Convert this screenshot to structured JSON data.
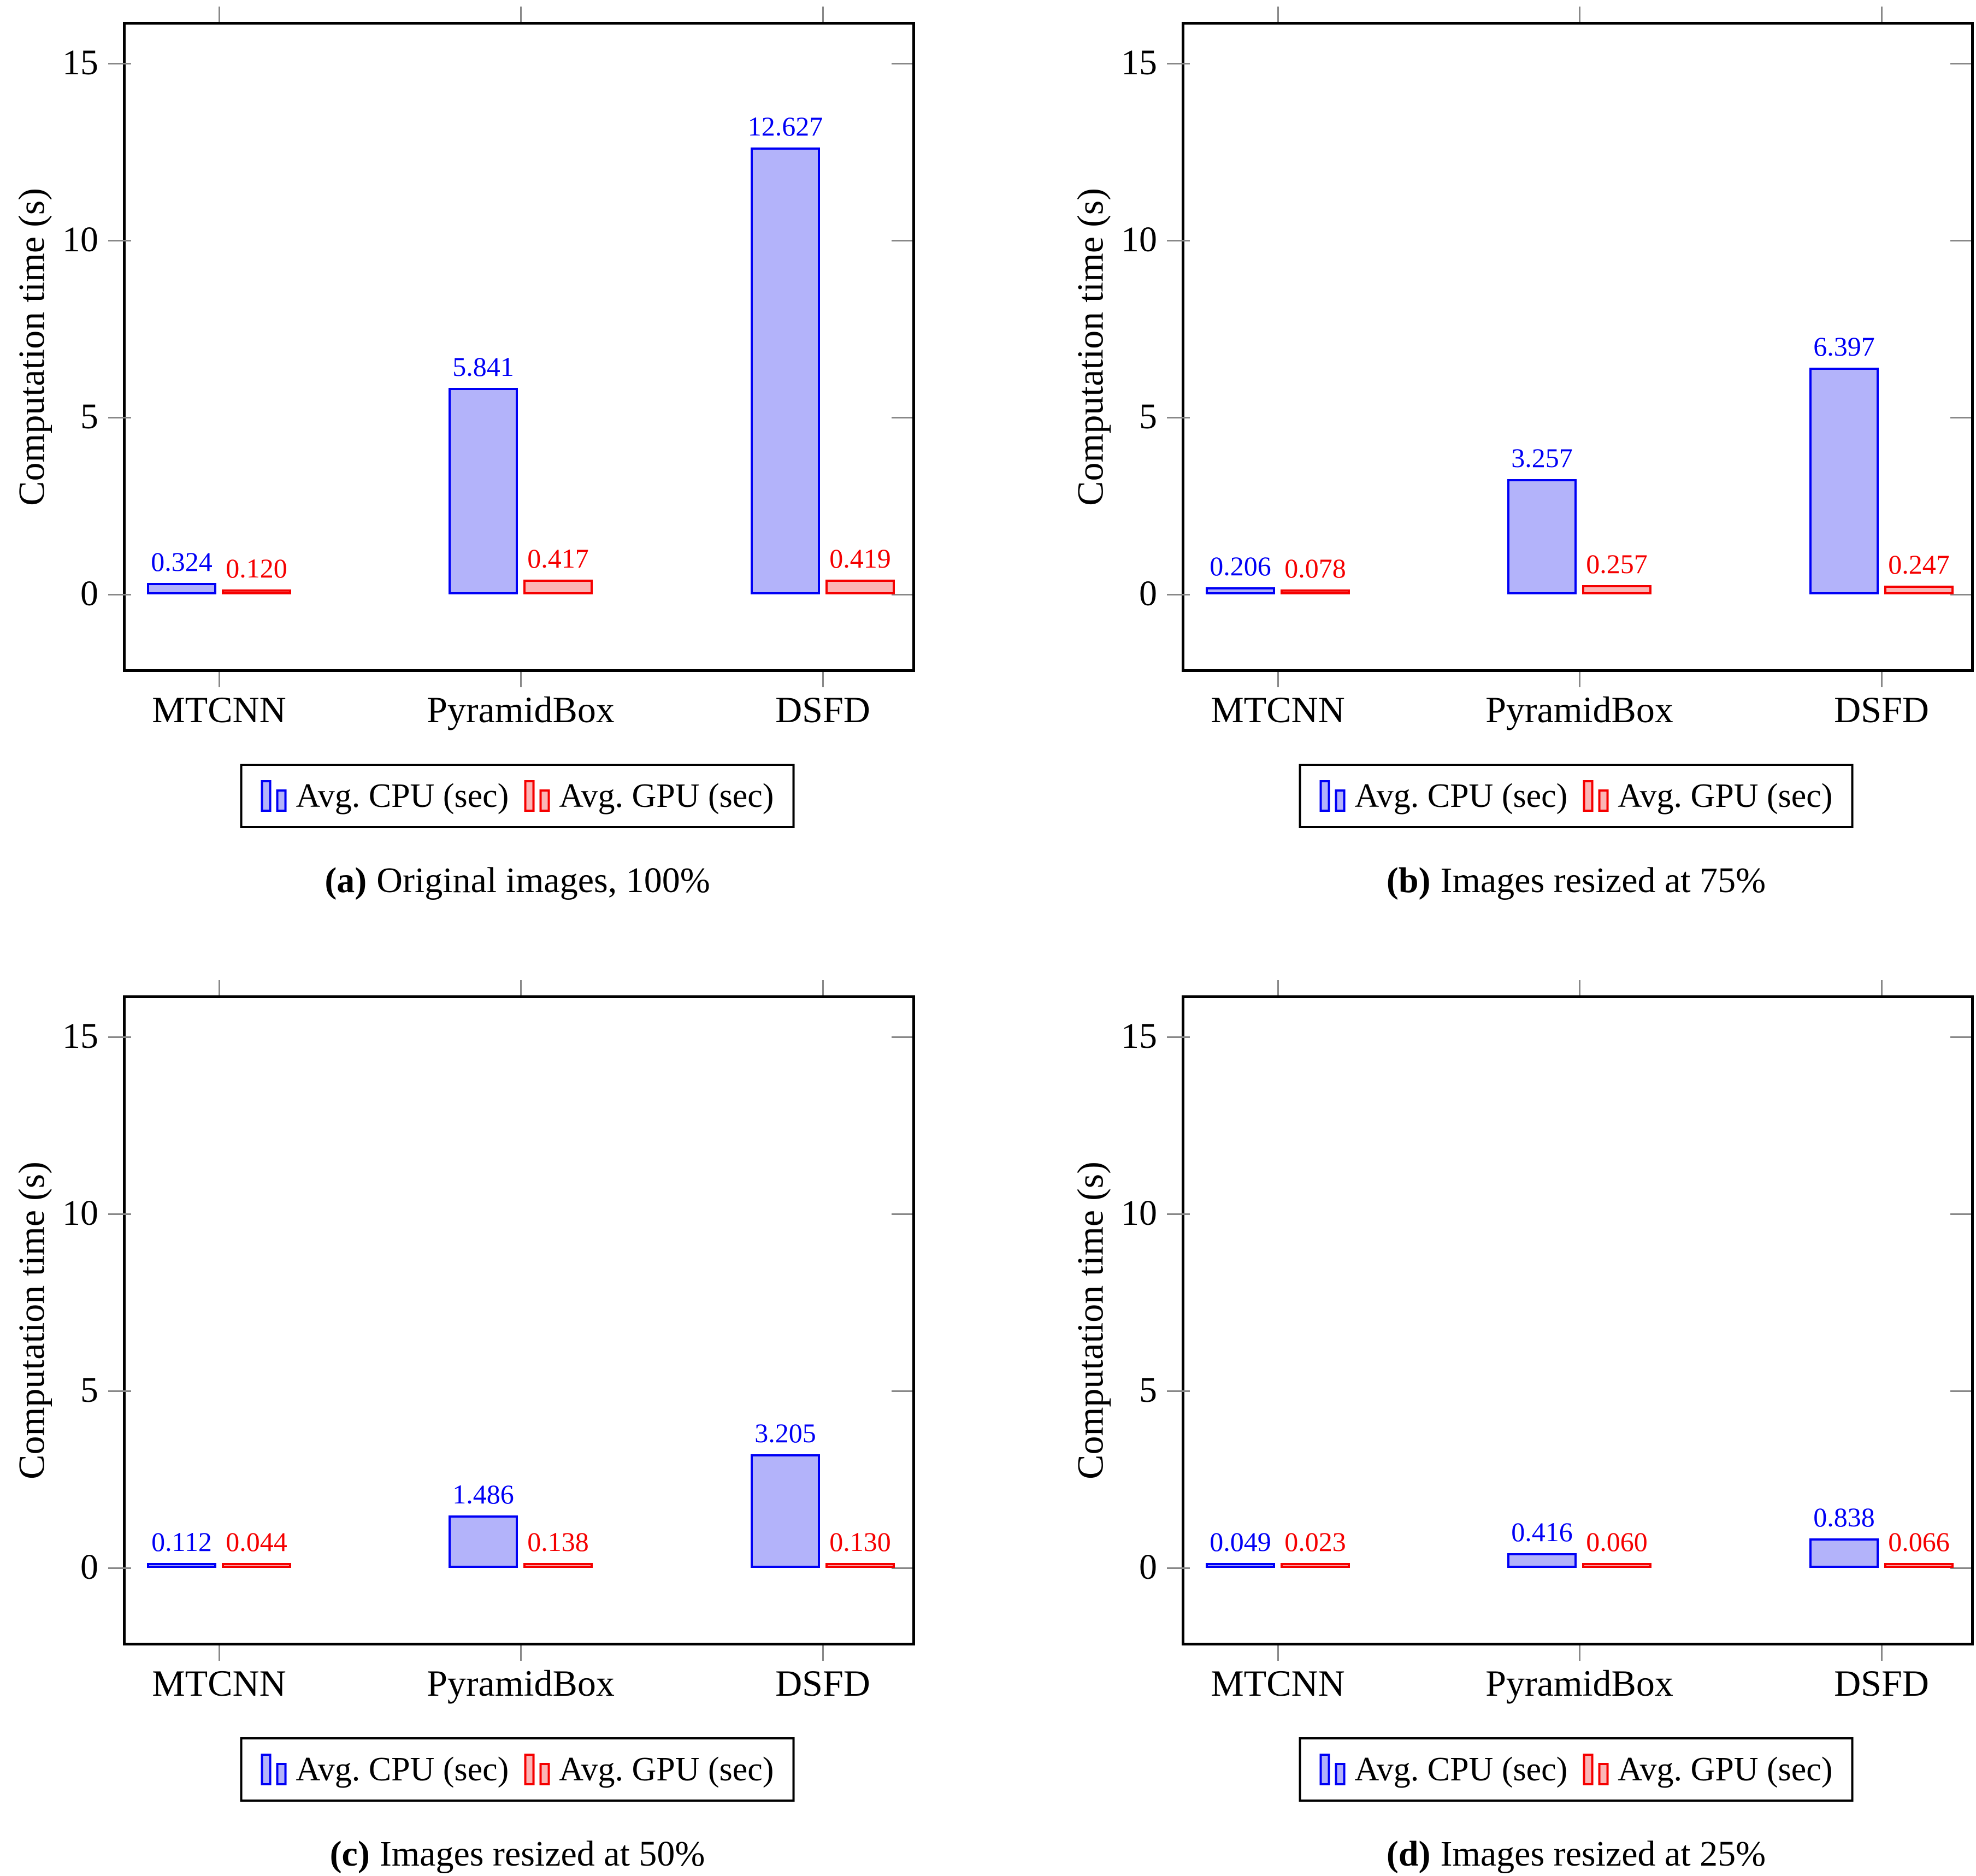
{
  "axis": {
    "ylabel": "Computation time (s)",
    "yticks": [
      0,
      5,
      10,
      15
    ],
    "ymin": -2.1,
    "ymax": 16.1,
    "categories": [
      "MTCNN",
      "PyramidBox",
      "DSFD"
    ]
  },
  "legend": {
    "cpu": "Avg. CPU (sec)",
    "gpu": "Avg. GPU (sec)"
  },
  "colors": {
    "cpu_border": "#0000f5",
    "cpu_fill": "#b3b3fa",
    "gpu_border": "#f50000",
    "gpu_fill": "#fbb6b6",
    "axis": "#000000",
    "tick": "#888888"
  },
  "chart_data": [
    {
      "type": "bar",
      "caption_label": "(a)",
      "caption_text": "Original images, 100%",
      "categories": [
        "MTCNN",
        "PyramidBox",
        "DSFD"
      ],
      "series": [
        {
          "name": "Avg. CPU (sec)",
          "values": [
            0.324,
            5.841,
            12.627
          ]
        },
        {
          "name": "Avg. GPU (sec)",
          "values": [
            0.12,
            0.417,
            0.419
          ]
        }
      ],
      "title": "",
      "xlabel": "",
      "ylabel": "Computation time (s)",
      "ylim": [
        -2.1,
        16.1
      ],
      "grid": false,
      "legend_position": "below"
    },
    {
      "type": "bar",
      "caption_label": "(b)",
      "caption_text": "Images resized at 75%",
      "categories": [
        "MTCNN",
        "PyramidBox",
        "DSFD"
      ],
      "series": [
        {
          "name": "Avg. CPU (sec)",
          "values": [
            0.206,
            3.257,
            6.397
          ]
        },
        {
          "name": "Avg. GPU (sec)",
          "values": [
            0.078,
            0.257,
            0.247
          ]
        }
      ],
      "title": "",
      "xlabel": "",
      "ylabel": "Computation time (s)",
      "ylim": [
        -2.1,
        16.1
      ],
      "grid": false,
      "legend_position": "below"
    },
    {
      "type": "bar",
      "caption_label": "(c)",
      "caption_text": "Images resized at 50%",
      "categories": [
        "MTCNN",
        "PyramidBox",
        "DSFD"
      ],
      "series": [
        {
          "name": "Avg. CPU (sec)",
          "values": [
            0.112,
            1.486,
            3.205
          ]
        },
        {
          "name": "Avg. GPU (sec)",
          "values": [
            0.044,
            0.138,
            0.13
          ]
        }
      ],
      "title": "",
      "xlabel": "",
      "ylabel": "Computation time (s)",
      "ylim": [
        -2.1,
        16.1
      ],
      "grid": false,
      "legend_position": "below"
    },
    {
      "type": "bar",
      "caption_label": "(d)",
      "caption_text": "Images resized at 25%",
      "categories": [
        "MTCNN",
        "PyramidBox",
        "DSFD"
      ],
      "series": [
        {
          "name": "Avg. CPU (sec)",
          "values": [
            0.049,
            0.416,
            0.838
          ]
        },
        {
          "name": "Avg. GPU (sec)",
          "values": [
            0.023,
            0.06,
            0.066
          ]
        }
      ],
      "title": "",
      "xlabel": "",
      "ylabel": "Computation time (s)",
      "ylim": [
        -2.1,
        16.1
      ],
      "grid": false,
      "legend_position": "below"
    }
  ]
}
